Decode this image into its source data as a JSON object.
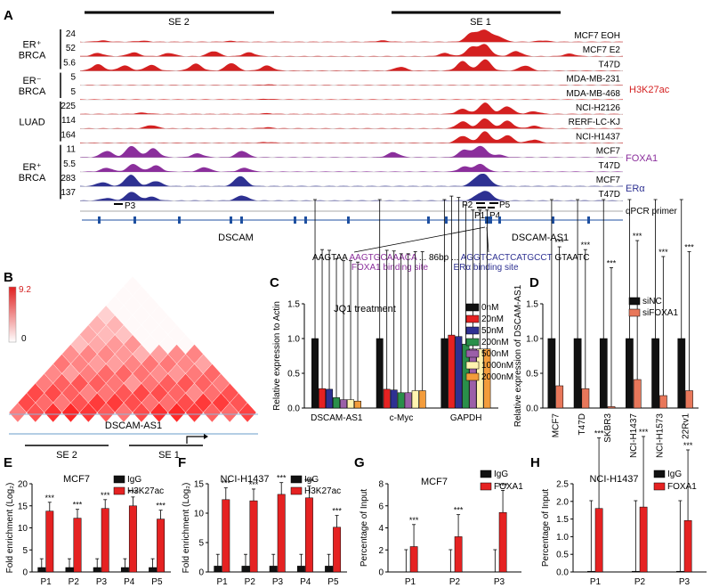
{
  "colors": {
    "h3k27ac": "#d42020",
    "foxa1": "#8b2f9c",
    "era": "#2e3192",
    "igg": "#111111",
    "red": "#e52222",
    "sinc": "#111111",
    "sifoxa1": "#e8775a",
    "foxa1_text": "#8b2f9c",
    "era_text": "#2e3192",
    "h3k27ac_text": "#d42020"
  },
  "panels": {
    "A": {
      "letter": "A",
      "super_enhancers": [
        "SE 2",
        "SE 1"
      ],
      "groups": [
        "ER⁺ BRCA",
        "ER⁻ BRCA",
        "LUAD",
        "ER⁺ BRCA"
      ],
      "tracks": [
        {
          "scale": "24",
          "sample": "MCF7 EOH",
          "mark": "H3K27ac"
        },
        {
          "scale": "52",
          "sample": "MCF7 E2",
          "mark": "H3K27ac"
        },
        {
          "scale": "5.6",
          "sample": "T47D",
          "mark": "H3K27ac"
        },
        {
          "scale": "5",
          "sample": "MDA-MB-231",
          "mark": "H3K27ac"
        },
        {
          "scale": "5",
          "sample": "MDA-MB-468",
          "mark": "H3K27ac"
        },
        {
          "scale": "225",
          "sample": "NCI-H2126",
          "mark": "H3K27ac"
        },
        {
          "scale": "114",
          "sample": "RERF-LC-KJ",
          "mark": "H3K27ac"
        },
        {
          "scale": "164",
          "sample": "NCI-H1437",
          "mark": "H3K27ac"
        },
        {
          "scale": "11",
          "sample": "MCF7",
          "mark": "FOXA1"
        },
        {
          "scale": "5.5",
          "sample": "T47D",
          "mark": "FOXA1"
        },
        {
          "scale": "283",
          "sample": "MCF7",
          "mark": "ERa"
        },
        {
          "scale": "137",
          "sample": "T47D",
          "mark": "ERa"
        }
      ],
      "mark_labels": {
        "h3k27ac": "H3K27ac",
        "foxa1": "FOXA1",
        "era": "ERα"
      },
      "primers": [
        "P3",
        "P2",
        "P5",
        "P1",
        "P4"
      ],
      "primer_track_label": "qPCR primer",
      "genes": [
        "DSCAM",
        "DSCAM-AS1"
      ],
      "sequence": {
        "p1": "AAGTAA",
        "foxa1": "AAGTGCAAACA",
        "p2": "... 86bp ...",
        "era": "AGGTCACTCATGCCT",
        "p3": "GTAATC",
        "foxa1_label": "FOXA1 binding site",
        "era_label": "ERα binding site"
      }
    },
    "B": {
      "letter": "B",
      "scale_max": "9.2",
      "scale_min": "0",
      "gene": "DSCAM-AS1",
      "se": [
        "SE 2",
        "SE 1"
      ]
    }
  },
  "chart_data": [
    {
      "panel": "C",
      "type": "bar",
      "title": "JQ1 treatment",
      "ylabel": "Relative expression to Actin",
      "ylim": [
        0,
        1.5
      ],
      "yticks": [
        "0.0",
        "0.5",
        "1.0",
        "1.5"
      ],
      "categories": [
        "DSCAM-AS1",
        "c-Myc",
        "GAPDH"
      ],
      "series": [
        {
          "name": "0nM",
          "color": "#111111",
          "values": [
            1.0,
            1.0,
            1.0
          ]
        },
        {
          "name": "20nM",
          "color": "#e52222",
          "values": [
            0.28,
            0.27,
            1.05
          ]
        },
        {
          "name": "50nM",
          "color": "#2e3192",
          "values": [
            0.27,
            0.26,
            1.03
          ]
        },
        {
          "name": "200nM",
          "color": "#2a8f4a",
          "values": [
            0.15,
            0.22,
            0.92
          ]
        },
        {
          "name": "500nM",
          "color": "#9b5fa8",
          "values": [
            0.12,
            0.22,
            0.85
          ]
        },
        {
          "name": "1000nM",
          "color": "#fff3b0",
          "values": [
            0.12,
            0.25,
            0.85
          ]
        },
        {
          "name": "2000nM",
          "color": "#f39c3b",
          "values": [
            0.1,
            0.25,
            0.85
          ]
        }
      ]
    },
    {
      "panel": "D",
      "type": "bar",
      "title": "",
      "ylabel": "Relative expression of DSCAM-AS1",
      "ylim": [
        0,
        1.5
      ],
      "yticks": [
        "0.0",
        "0.5",
        "1.0",
        "1.5"
      ],
      "categories": [
        "MCF7",
        "T47D",
        "SKBR3",
        "NCI-H1437",
        "NCI-H1573",
        "22Rv1"
      ],
      "series": [
        {
          "name": "siNC",
          "color": "#111111",
          "values": [
            1.0,
            1.0,
            1.0,
            1.0,
            1.0,
            1.0
          ]
        },
        {
          "name": "siFOXA1",
          "color": "#e8775a",
          "values": [
            0.32,
            0.28,
            0.02,
            0.41,
            0.18,
            0.25
          ]
        }
      ],
      "significance": "***"
    },
    {
      "panel": "E",
      "type": "bar",
      "title": "MCF7",
      "ylabel": "Fold enrichment (Log₂)",
      "ylim": [
        0,
        20
      ],
      "yticks": [
        "0",
        "5",
        "10",
        "15",
        "20"
      ],
      "categories": [
        "P1",
        "P2",
        "P3",
        "P4",
        "P5"
      ],
      "series": [
        {
          "name": "IgG",
          "color": "#111111",
          "values": [
            1,
            1,
            1,
            1,
            1
          ]
        },
        {
          "name": "H3K27ac",
          "color": "#e52222",
          "values": [
            13.8,
            12.2,
            14.4,
            15.0,
            12.0
          ]
        }
      ],
      "significance": "***"
    },
    {
      "panel": "F",
      "type": "bar",
      "title": "NCI-H1437",
      "ylabel": "Fold enrichment (Log₂)",
      "ylim": [
        0,
        15
      ],
      "yticks": [
        "0",
        "5",
        "10",
        "15"
      ],
      "categories": [
        "P1",
        "P2",
        "P3",
        "P4",
        "P5"
      ],
      "series": [
        {
          "name": "IgG",
          "color": "#111111",
          "values": [
            1,
            1,
            1,
            1,
            1
          ]
        },
        {
          "name": "H3K27ac",
          "color": "#e52222",
          "values": [
            12.3,
            12.1,
            13.2,
            12.6,
            7.6
          ]
        }
      ],
      "significance": "***"
    },
    {
      "panel": "G",
      "type": "bar",
      "title": "MCF7",
      "ylabel": "Percentage of Input",
      "ylim": [
        0,
        8
      ],
      "yticks": [
        "0",
        "2",
        "4",
        "6",
        "8"
      ],
      "categories": [
        "P1",
        "P2",
        "P3"
      ],
      "series": [
        {
          "name": "IgG",
          "color": "#111111",
          "values": [
            0.02,
            0.02,
            0.02
          ]
        },
        {
          "name": "FOXA1",
          "color": "#e52222",
          "values": [
            2.3,
            3.2,
            5.4
          ]
        }
      ],
      "significance": "***"
    },
    {
      "panel": "H",
      "type": "bar",
      "title": "NCI-H1437",
      "ylabel": "Percentage of Input",
      "ylim": [
        0,
        2.5
      ],
      "yticks": [
        "0.0",
        "0.5",
        "1.0",
        "1.5",
        "2.0",
        "2.5"
      ],
      "categories": [
        "P1",
        "P2",
        "P3"
      ],
      "series": [
        {
          "name": "IgG",
          "color": "#111111",
          "values": [
            0.02,
            0.02,
            0.02
          ]
        },
        {
          "name": "FOXA1",
          "color": "#e52222",
          "values": [
            1.8,
            1.84,
            1.46
          ]
        }
      ],
      "significance": "***"
    }
  ]
}
